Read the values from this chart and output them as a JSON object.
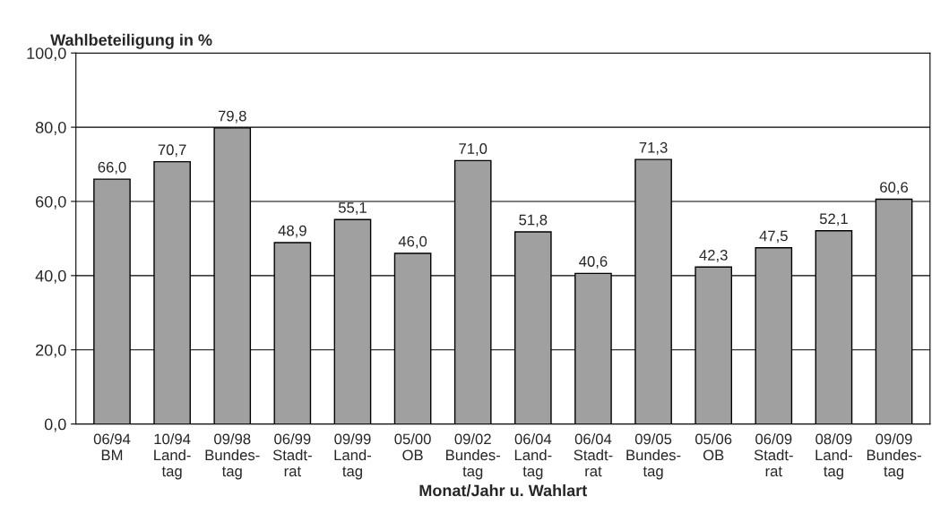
{
  "chart_data": {
    "type": "bar",
    "title": "Wahlbeteiligung in %",
    "xlabel": "Monat/Jahr u. Wahlart",
    "categories": [
      "06/94\nBM",
      "10/94\nLand-\ntag",
      "09/98\nBundes-\ntag",
      "06/99\nStadt-\nrat",
      "09/99\nLand-\ntag",
      "05/00\nOB",
      "09/02\nBundes-\ntag",
      "06/04\nLand-\ntag",
      "06/04\nStadt-\nrat",
      "09/05\nBundes-\ntag",
      "05/06\nOB",
      "06/09\nStadt-\nrat",
      "08/09\nLand-\ntag",
      "09/09\nBundes-\ntag"
    ],
    "values": [
      66.0,
      70.7,
      79.8,
      48.9,
      55.1,
      46.0,
      71.0,
      51.8,
      40.6,
      71.3,
      42.3,
      47.5,
      52.1,
      60.6
    ],
    "value_labels": [
      "66,0",
      "70,7",
      "79,8",
      "48,9",
      "55,1",
      "46,0",
      "71,0",
      "51,8",
      "40,6",
      "71,3",
      "42,3",
      "47,5",
      "52,1",
      "60,6"
    ],
    "color": "#a0a0a0",
    "ylim": [
      0,
      100
    ],
    "yticks": [
      {
        "value": 0,
        "label": "0,0"
      },
      {
        "value": 20,
        "label": "20,0"
      },
      {
        "value": 40,
        "label": "40,0"
      },
      {
        "value": 60,
        "label": "60,0"
      },
      {
        "value": 80,
        "label": "80,0"
      },
      {
        "value": 100,
        "label": "100,0"
      }
    ],
    "grid": "y"
  }
}
